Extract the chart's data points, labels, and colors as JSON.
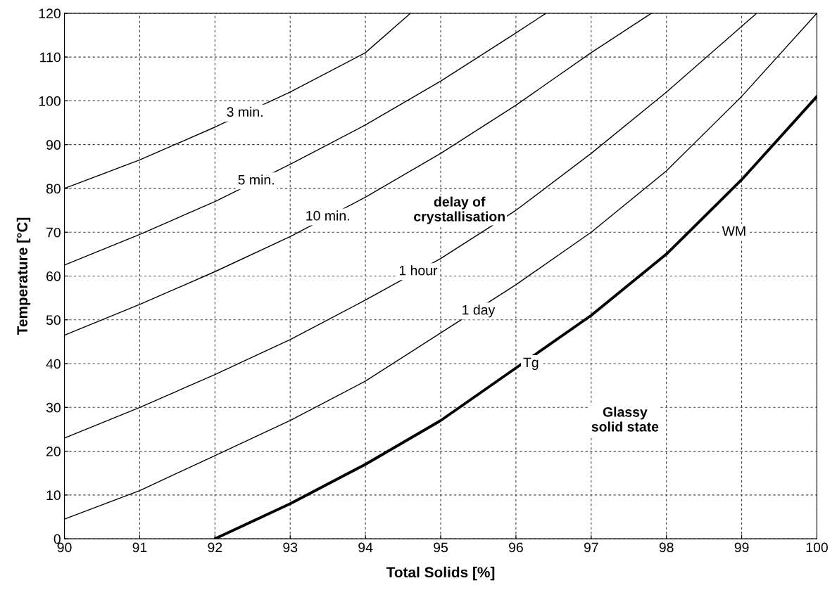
{
  "chart_data": {
    "type": "line",
    "xlabel": "Total Solids [%]",
    "ylabel": "Temperature [°C]",
    "xlim": [
      90,
      100
    ],
    "ylim": [
      0,
      120
    ],
    "xticks": [
      90,
      91,
      92,
      93,
      94,
      95,
      96,
      97,
      98,
      99,
      100
    ],
    "yticks": [
      0,
      10,
      20,
      30,
      40,
      50,
      60,
      70,
      80,
      90,
      100,
      110,
      120
    ],
    "grid": true,
    "marker": "none",
    "line_style": "solid",
    "series": [
      {
        "color": "#000000",
        "x": [
          90,
          91,
          92,
          93,
          94,
          94.6
        ],
        "values": [
          80,
          86.5,
          94,
          102,
          111,
          120
        ]
      },
      {
        "color": "#000000",
        "x": [
          90,
          91,
          92,
          93,
          94,
          95,
          96,
          96.4
        ],
        "values": [
          62.5,
          69.5,
          77,
          85.5,
          94.5,
          104.5,
          115.5,
          120
        ]
      },
      {
        "color": "#000000",
        "x": [
          90,
          91,
          92,
          93,
          94,
          95,
          96,
          97,
          97.8
        ],
        "values": [
          46.5,
          53.5,
          61,
          69,
          78,
          88,
          99,
          111,
          120
        ]
      },
      {
        "color": "#000000",
        "x": [
          90,
          91,
          92,
          93,
          94,
          95,
          96,
          97,
          98,
          99,
          99.2
        ],
        "values": [
          23,
          30,
          37.5,
          45.5,
          54.5,
          64,
          75,
          88,
          102,
          117,
          120
        ]
      },
      {
        "color": "#000000",
        "x": [
          90,
          91,
          92,
          93,
          94,
          95,
          96,
          97,
          98,
          99,
          100
        ],
        "values": [
          4.5,
          11,
          19,
          27,
          36,
          47,
          58,
          70,
          84,
          101,
          120
        ]
      },
      {
        "color": "#000000",
        "x": [
          92,
          93,
          94,
          95,
          96,
          97,
          98,
          99,
          100
        ],
        "values": [
          0,
          8,
          17,
          27,
          39,
          51,
          65,
          82,
          101
        ]
      }
    ],
    "annotations": [
      {
        "text": "3 min.",
        "x": 92.4,
        "y": 97.2
      },
      {
        "text": "5 min.",
        "x": 92.55,
        "y": 81.7
      },
      {
        "text": "10 min.",
        "x": 93.5,
        "y": 73.5
      },
      {
        "text": "1 hour",
        "x": 94.7,
        "y": 61
      },
      {
        "text": "1 day",
        "x": 95.5,
        "y": 52
      },
      {
        "text": "Tg",
        "x": 96.2,
        "y": 40
      },
      {
        "text": "WM",
        "x": 98.9,
        "y": 70
      },
      "delay of\ncrystallisation",
      "Glassy\nsolid state"
    ]
  }
}
